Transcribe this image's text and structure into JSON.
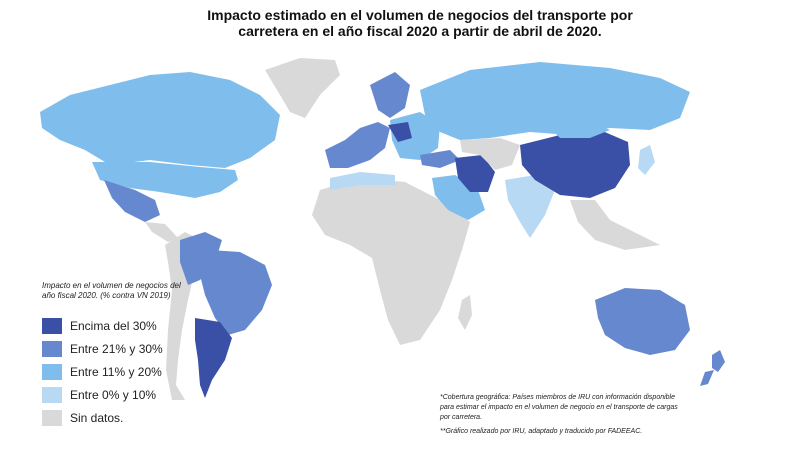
{
  "title": {
    "line1": "Impacto estimado en el volumen de negocios del transporte por",
    "line2": "carretera en el año fiscal 2020 a partir de abril de 2020."
  },
  "legend": {
    "title": "Impacto en el volumen de negocios del año fiscal 2020. (% contra  VN 2019)",
    "items": [
      {
        "label": "Encima del 30%",
        "color": "#3a4fa6"
      },
      {
        "label": "Entre 21% y 30%",
        "color": "#6688cf"
      },
      {
        "label": "Entre 11% y 20%",
        "color": "#7fbdec"
      },
      {
        "label": "Entre 0% y 10%",
        "color": "#b8d9f3"
      },
      {
        "label": "Sin datos.",
        "color": "#d9d9d9"
      }
    ]
  },
  "notes": {
    "coverage": "*Cobertura geográfica: Países miembros de IRU con información disponible para estimar el impacto en el volumen de negocio en el transporte de cargas por carretera.",
    "credit": "**Gráfico realizado por IRU, adaptado y traducido por FADEEAC."
  },
  "regions": [
    {
      "name": "Canadá / EE.UU.",
      "category": "Entre 11% y 20%"
    },
    {
      "name": "México",
      "category": "Entre 21% y 30%"
    },
    {
      "name": "Brasil",
      "category": "Entre 21% y 30%"
    },
    {
      "name": "Argentina",
      "category": "Encima del 30%"
    },
    {
      "name": "Rusia",
      "category": "Entre 11% y 20%"
    },
    {
      "name": "China",
      "category": "Encima del 30%"
    },
    {
      "name": "Irán",
      "category": "Encima del 30%"
    },
    {
      "name": "India",
      "category": "Entre 0% y 10%"
    },
    {
      "name": "Arabia Saudita",
      "category": "Entre 11% y 20%"
    },
    {
      "name": "Australia",
      "category": "Entre 21% y 30%"
    },
    {
      "name": "Nueva Zelanda",
      "category": "Entre 21% y 30%"
    },
    {
      "name": "Groenlandia",
      "category": "Sin datos."
    },
    {
      "name": "África",
      "category": "Sin datos."
    }
  ]
}
